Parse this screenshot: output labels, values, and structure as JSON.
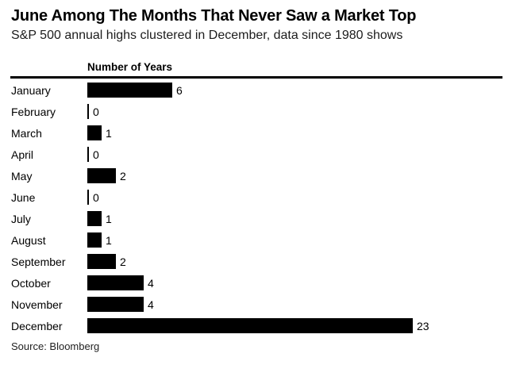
{
  "header": {
    "title": "June Among The Months That Never Saw a Market Top",
    "subtitle": "S&P 500 annual highs clustered in December, data since 1980 shows"
  },
  "chart_data": {
    "type": "bar",
    "orientation": "horizontal",
    "axis_title": "Number of Years",
    "categories": [
      "January",
      "February",
      "March",
      "April",
      "May",
      "June",
      "July",
      "August",
      "September",
      "October",
      "November",
      "December"
    ],
    "values": [
      6,
      0,
      1,
      0,
      2,
      0,
      1,
      1,
      2,
      4,
      4,
      23
    ],
    "xlabel": "Number of Years",
    "ylabel": "",
    "xlim": [
      0,
      29
    ],
    "grid": false,
    "value_labels_shown": true,
    "bar_color": "#000000",
    "background_color": "#ffffff"
  },
  "footer": {
    "source": "Source: Bloomberg"
  }
}
